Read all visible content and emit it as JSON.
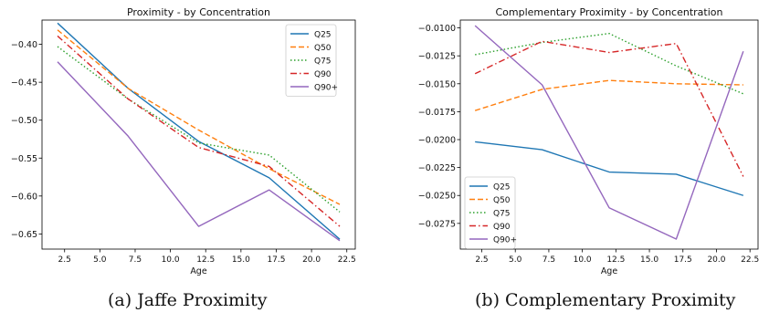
{
  "chart_data": [
    {
      "type": "line",
      "title": "Proximity - by Concentration",
      "xlabel": "Age",
      "ylabel": "",
      "x": [
        2,
        7,
        12,
        17,
        22
      ],
      "xlim": [
        0.9,
        23.1
      ],
      "ylim": [
        -0.67,
        -0.368
      ],
      "xticks": [
        2.5,
        5.0,
        7.5,
        10.0,
        12.5,
        15.0,
        17.5,
        20.0,
        22.5
      ],
      "xtick_labels": [
        "2.5",
        "5.0",
        "7.5",
        "10.0",
        "12.5",
        "15.0",
        "17.5",
        "20.0",
        "22.5"
      ],
      "yticks": [
        -0.4,
        -0.45,
        -0.5,
        -0.55,
        -0.6,
        -0.65
      ],
      "ytick_labels": [
        "−0.40",
        "−0.45",
        "−0.50",
        "−0.55",
        "−0.60",
        "−0.65"
      ],
      "grid": false,
      "legend_position": "top-right",
      "series": [
        {
          "name": "Q25",
          "values": [
            -0.372,
            -0.458,
            -0.528,
            -0.576,
            -0.657
          ]
        },
        {
          "name": "Q50",
          "values": [
            -0.381,
            -0.458,
            -0.513,
            -0.564,
            -0.611
          ]
        },
        {
          "name": "Q75",
          "values": [
            -0.403,
            -0.472,
            -0.53,
            -0.546,
            -0.621
          ]
        },
        {
          "name": "Q90",
          "values": [
            -0.389,
            -0.472,
            -0.536,
            -0.561,
            -0.64
          ]
        },
        {
          "name": "Q90+",
          "values": [
            -0.423,
            -0.521,
            -0.64,
            -0.592,
            -0.659
          ]
        }
      ]
    },
    {
      "type": "line",
      "title": "Complementary Proximity - by Concentration",
      "xlabel": "Age",
      "ylabel": "",
      "x": [
        2,
        7,
        12,
        17,
        22
      ],
      "xlim": [
        0.9,
        23.1
      ],
      "ylim": [
        -0.0298,
        -0.0093
      ],
      "xticks": [
        2.5,
        5.0,
        7.5,
        10.0,
        12.5,
        15.0,
        17.5,
        20.0,
        22.5
      ],
      "xtick_labels": [
        "2.5",
        "5.0",
        "7.5",
        "10.0",
        "12.5",
        "15.0",
        "17.5",
        "20.0",
        "22.5"
      ],
      "yticks": [
        -0.01,
        -0.0125,
        -0.015,
        -0.0175,
        -0.02,
        -0.0225,
        -0.025,
        -0.0275
      ],
      "ytick_labels": [
        "−0.0100",
        "−0.0125",
        "−0.0150",
        "−0.0175",
        "−0.0200",
        "−0.0225",
        "−0.0250",
        "−0.0275"
      ],
      "grid": false,
      "legend_position": "bottom-left",
      "series": [
        {
          "name": "Q25",
          "values": [
            -0.0202,
            -0.0209,
            -0.0229,
            -0.0231,
            -0.025
          ]
        },
        {
          "name": "Q50",
          "values": [
            -0.0174,
            -0.0155,
            -0.0147,
            -0.015,
            -0.0151
          ]
        },
        {
          "name": "Q75",
          "values": [
            -0.0124,
            -0.0113,
            -0.0105,
            -0.0134,
            -0.0159
          ]
        },
        {
          "name": "Q90",
          "values": [
            -0.0141,
            -0.0112,
            -0.0122,
            -0.0114,
            -0.0233
          ]
        },
        {
          "name": "Q90+",
          "values": [
            -0.0098,
            -0.0151,
            -0.0261,
            -0.0289,
            -0.0121
          ]
        }
      ]
    }
  ],
  "series_styles": [
    {
      "color": "#1f77b4",
      "dash": ""
    },
    {
      "color": "#ff7f0e",
      "dash": "6,3"
    },
    {
      "color": "#2ca02c",
      "dash": "1.5,2.5"
    },
    {
      "color": "#d62728",
      "dash": "7,3,1.5,3"
    },
    {
      "color": "#9467bd",
      "dash": ""
    }
  ],
  "captions": {
    "a": "(a) Jaffe Proximity",
    "b": "(b) Complementary Proximity"
  }
}
